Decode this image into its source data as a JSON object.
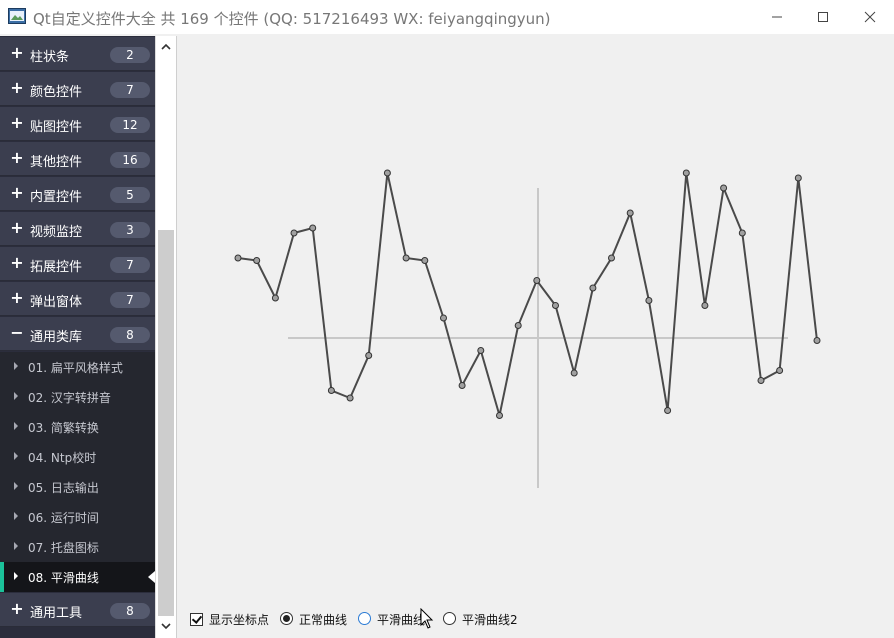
{
  "window": {
    "title": "Qt自定义控件大全 共 169 个控件 (QQ: 517216493 WX: feiyangqingyun)",
    "icons": [
      "app-icon",
      "minimize-icon",
      "maximize-icon",
      "close-icon"
    ]
  },
  "sidebar": {
    "groups": [
      {
        "label": "柱状条",
        "count": "2",
        "expanded": false
      },
      {
        "label": "颜色控件",
        "count": "7",
        "expanded": false
      },
      {
        "label": "贴图控件",
        "count": "12",
        "expanded": false
      },
      {
        "label": "其他控件",
        "count": "16",
        "expanded": false
      },
      {
        "label": "内置控件",
        "count": "5",
        "expanded": false
      },
      {
        "label": "视频监控",
        "count": "3",
        "expanded": false
      },
      {
        "label": "拓展控件",
        "count": "7",
        "expanded": false
      },
      {
        "label": "弹出窗体",
        "count": "7",
        "expanded": false
      },
      {
        "label": "通用类库",
        "count": "8",
        "expanded": true
      },
      {
        "label": "通用工具",
        "count": "8",
        "expanded": false
      }
    ],
    "subitems": [
      "01. 扁平风格样式",
      "02. 汉字转拼音",
      "03. 简繁转换",
      "04. Ntp校时",
      "05. 日志输出",
      "06. 运行时间",
      "07. 托盘图标",
      "08. 平滑曲线"
    ],
    "active_subitem": 7
  },
  "colors": {
    "sidebar_bg": "#2b2d3c",
    "group_bg": "#3b3e4f",
    "active_accent": "#1bc29a",
    "curve": "#4a4a4a",
    "point_fill": "#a0a0a0",
    "axis": "#c8c8c8"
  },
  "chart_data": {
    "type": "line",
    "grid": false,
    "show_points": true,
    "values": [
      0.32,
      0.31,
      0.16,
      0.42,
      0.44,
      -0.21,
      -0.24,
      -0.07,
      0.66,
      0.32,
      0.31,
      0.08,
      -0.19,
      -0.05,
      -0.31,
      0.05,
      0.23,
      0.13,
      -0.14,
      0.2,
      0.32,
      0.5,
      0.15,
      -0.29,
      0.66,
      0.13,
      0.6,
      0.42,
      -0.17,
      -0.13,
      0.64,
      -0.01
    ]
  },
  "options": {
    "show_points": {
      "label": "显示坐标点",
      "checked": true
    },
    "modes": [
      {
        "label": "正常曲线",
        "selected": true
      },
      {
        "label": "平滑曲线",
        "selected": false
      },
      {
        "label": "平滑曲线2",
        "selected": false
      }
    ]
  }
}
